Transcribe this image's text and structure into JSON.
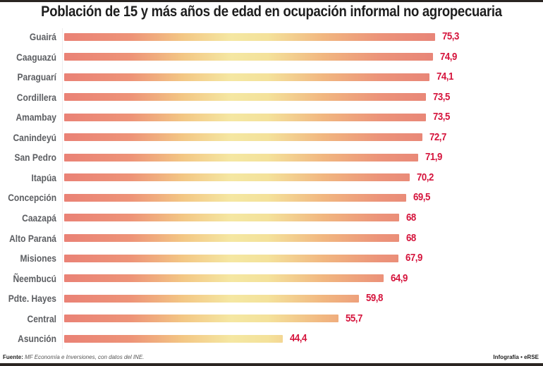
{
  "chart_data": {
    "type": "bar",
    "orientation": "horizontal",
    "title": "Población de 15 y más años de edad en ocupación informal no agropecuaria",
    "xlabel": "",
    "ylabel": "",
    "xlim": [
      0,
      75.3
    ],
    "grid": false,
    "legend": "none",
    "categories": [
      "Guairá",
      "Caaguazú",
      "Paraguarí",
      "Cordillera",
      "Amambay",
      "Canindeyú",
      "San Pedro",
      "Itapúa",
      "Concepción",
      "Caazapá",
      "Alto Paraná",
      "Misiones",
      "Ñeembucú",
      "Pdte. Hayes",
      "Central",
      "Asunción"
    ],
    "values": [
      75.3,
      74.9,
      74.1,
      73.5,
      73.5,
      72.7,
      71.9,
      70.2,
      69.5,
      68,
      68,
      67.9,
      64.9,
      59.8,
      55.7,
      44.4
    ],
    "value_labels": [
      "75,3",
      "74,9",
      "74,1",
      "73,5",
      "73,5",
      "72,7",
      "71,9",
      "70,2",
      "69,5",
      "68",
      "68",
      "67,9",
      "64,9",
      "59,8",
      "55,7",
      "44,4"
    ],
    "colors": {
      "bar_edge": "#e8776a",
      "bar_middle": "#f4e59a",
      "value_label": "#d5143c",
      "category_label": "#5c5e62"
    }
  },
  "footer": {
    "source_prefix": "Fuente:",
    "source_text": "MF Economía e Inversiones, con datos del INE.",
    "credit": "Infografía • eRSE"
  }
}
